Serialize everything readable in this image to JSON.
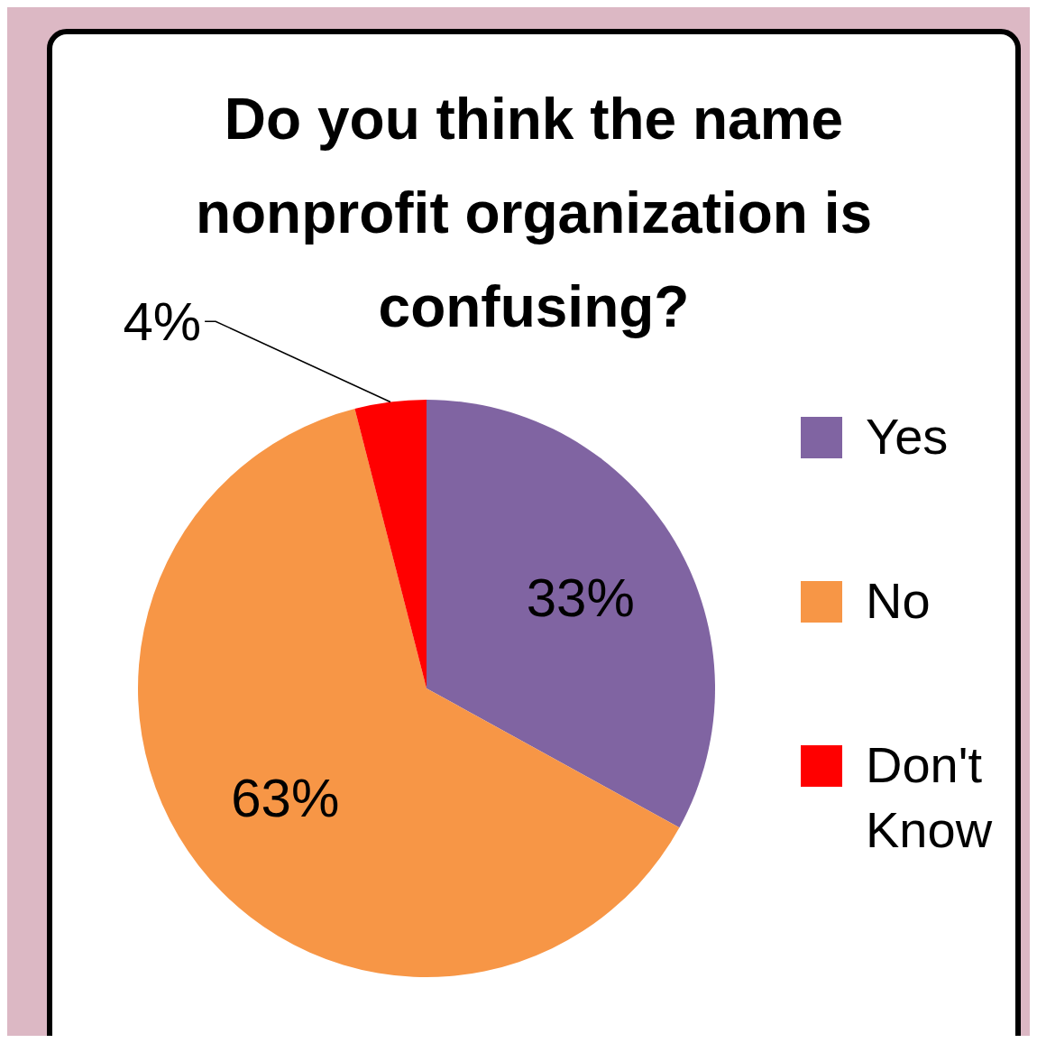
{
  "chart_data": {
    "type": "pie",
    "title": "Do you think the name nonprofit organization is confusing?",
    "categories": [
      "Yes",
      "No",
      "Don't Know"
    ],
    "values": [
      33,
      63,
      4
    ],
    "value_labels": [
      "33%",
      "63%",
      "4%"
    ],
    "colors": [
      "#8064a2",
      "#f79646",
      "#ff0000"
    ],
    "legend": "right"
  }
}
